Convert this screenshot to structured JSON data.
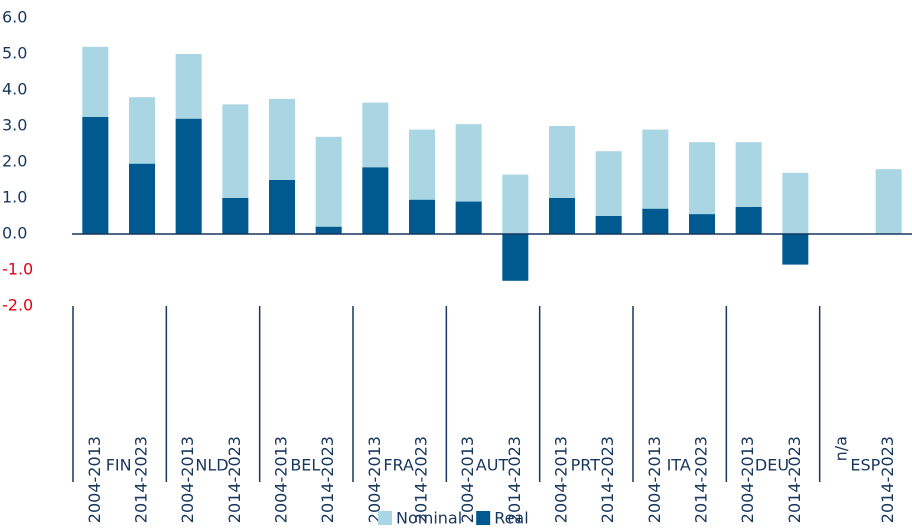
{
  "chart_data": {
    "type": "bar",
    "categories": [
      "2004-2013",
      "2014-2023",
      "2004-2013",
      "2014-2023",
      "2004-2013",
      "2014-2023",
      "2004-2013",
      "2014-2023",
      "2004-2013",
      "2014-2023",
      "2004-2013",
      "2014-2023",
      "2004-2013",
      "2014-2023",
      "2004-2013",
      "2014-2023",
      "n/a",
      "2014-2023"
    ],
    "groups": [
      "FIN",
      "NLD",
      "BEL",
      "FRA",
      "AUT",
      "PRT",
      "ITA",
      "DEU",
      "ESP"
    ],
    "series": [
      {
        "name": "Nominal",
        "color": "#aad6e3",
        "values": [
          5.2,
          3.8,
          5.0,
          3.6,
          3.75,
          2.7,
          3.65,
          2.9,
          3.05,
          1.65,
          3.0,
          2.3,
          2.9,
          2.55,
          2.55,
          1.7,
          null,
          1.8
        ]
      },
      {
        "name": "Real",
        "color": "#005a8f",
        "values": [
          3.25,
          1.95,
          3.2,
          1.0,
          1.5,
          0.2,
          1.85,
          0.95,
          0.9,
          -1.3,
          1.0,
          0.5,
          0.7,
          0.55,
          0.75,
          -0.85,
          null,
          null
        ]
      }
    ],
    "overlap": true,
    "ylim": [
      -2,
      6
    ],
    "yticks": [
      {
        "value": -2,
        "label": "-2.0"
      },
      {
        "value": -1,
        "label": "-1.0"
      },
      {
        "value": 0,
        "label": "0.0"
      },
      {
        "value": 1,
        "label": "1.0"
      },
      {
        "value": 2,
        "label": "2.0"
      },
      {
        "value": 3,
        "label": "3.0"
      },
      {
        "value": 4,
        "label": "4.0"
      },
      {
        "value": 5,
        "label": "5.0"
      },
      {
        "value": 6,
        "label": "6.0"
      }
    ],
    "negative_tick_color": "#e3000f",
    "legend": "bottom"
  }
}
